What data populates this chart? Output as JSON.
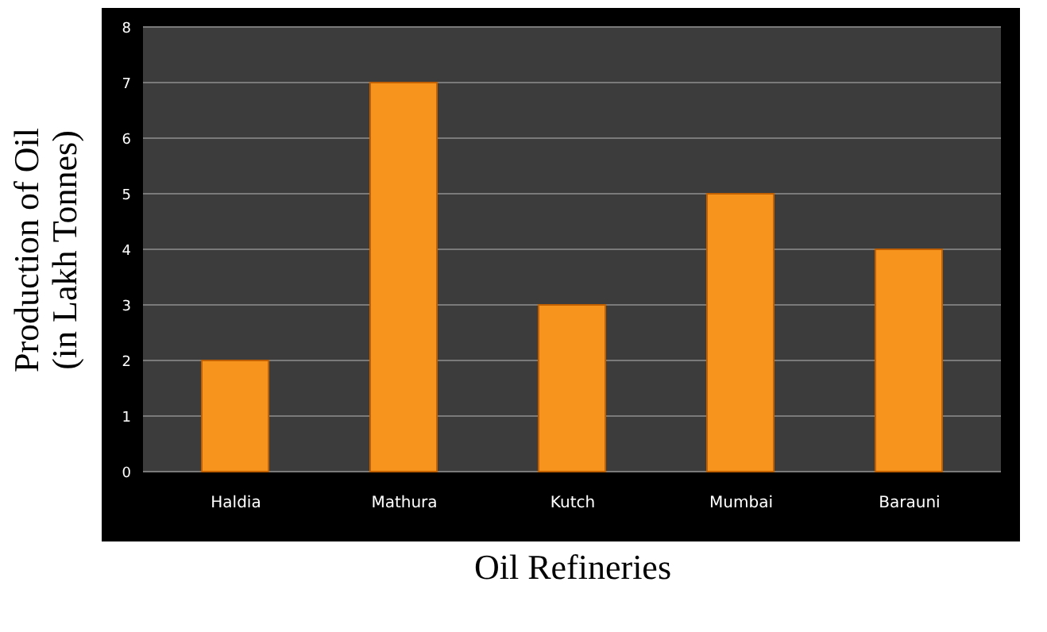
{
  "chart_data": {
    "type": "bar",
    "xlabel": "Oil Refineries",
    "ylabel": "Production of  Oil\n(in Lakh Tonnes)",
    "categories": [
      "Haldia",
      "Mathura",
      "Kutch",
      "Mumbai",
      "Barauni"
    ],
    "values": [
      2,
      7,
      3,
      5,
      4
    ],
    "color": "#f7941d",
    "ylim": [
      0,
      8
    ],
    "yticks": [
      0,
      1,
      2,
      3,
      4,
      5,
      6,
      7,
      8
    ],
    "grid": "y"
  }
}
